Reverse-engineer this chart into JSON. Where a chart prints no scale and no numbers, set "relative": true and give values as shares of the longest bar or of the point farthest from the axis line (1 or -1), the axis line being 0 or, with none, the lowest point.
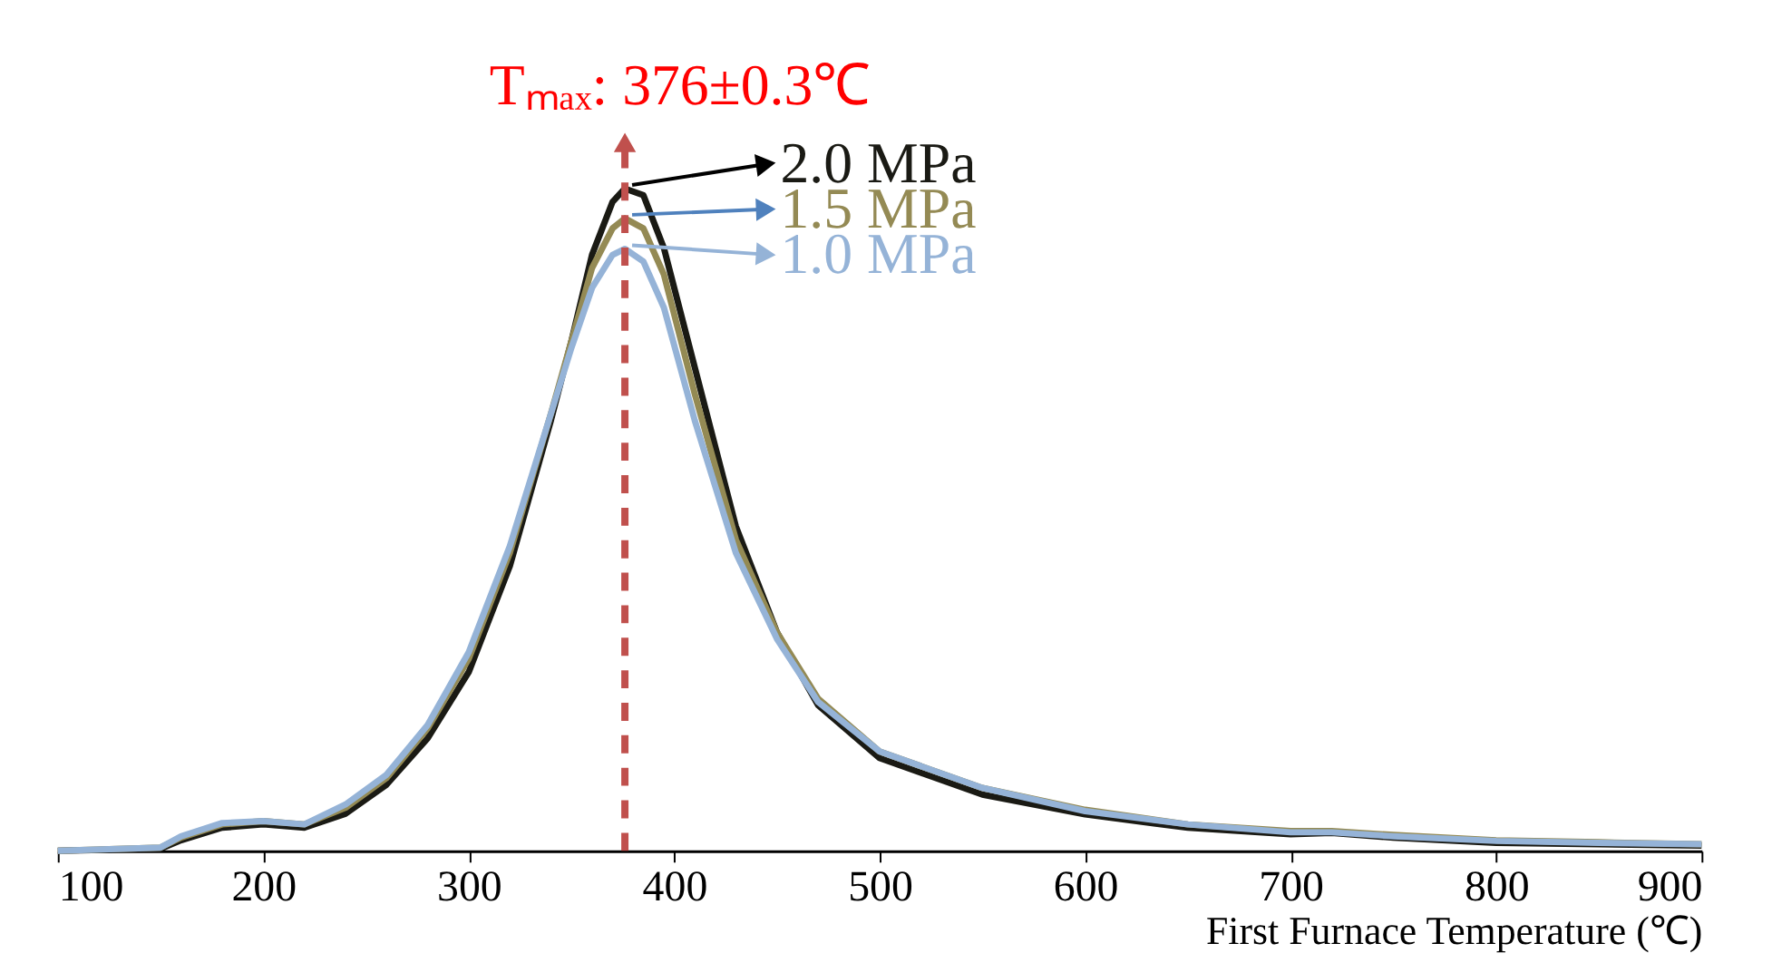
{
  "chart_data": {
    "type": "line",
    "relative": true,
    "xlabel": "First Furnace Temperature (℃)",
    "x": [
      100,
      150,
      160,
      180,
      200,
      220,
      240,
      260,
      280,
      300,
      320,
      340,
      350,
      360,
      370,
      376,
      385,
      395,
      410,
      430,
      450,
      470,
      500,
      550,
      600,
      650,
      700,
      720,
      750,
      800,
      850,
      900
    ],
    "xlim": [
      100,
      900
    ],
    "xticks": [
      100,
      200,
      300,
      400,
      500,
      600,
      700,
      800,
      900
    ],
    "series": [
      {
        "name": "2.0 MPa",
        "color": "#1a1a14",
        "values": [
          0,
          0.003,
          0.016,
          0.035,
          0.04,
          0.035,
          0.056,
          0.1,
          0.17,
          0.27,
          0.43,
          0.65,
          0.77,
          0.9,
          0.98,
          1.0,
          0.99,
          0.91,
          0.73,
          0.49,
          0.33,
          0.22,
          0.14,
          0.085,
          0.055,
          0.035,
          0.025,
          0.027,
          0.02,
          0.012,
          0.01,
          0.008
        ]
      },
      {
        "name": "1.5 MPa",
        "color": "#948a54",
        "values": [
          0,
          0.005,
          0.02,
          0.04,
          0.045,
          0.04,
          0.065,
          0.11,
          0.185,
          0.29,
          0.45,
          0.66,
          0.77,
          0.88,
          0.94,
          0.955,
          0.94,
          0.87,
          0.69,
          0.47,
          0.33,
          0.23,
          0.15,
          0.095,
          0.062,
          0.04,
          0.03,
          0.03,
          0.024,
          0.016,
          0.013,
          0.01
        ]
      },
      {
        "name": "1.0 MPa",
        "color": "#95b3d7",
        "values": [
          0,
          0.005,
          0.022,
          0.042,
          0.045,
          0.04,
          0.07,
          0.115,
          0.19,
          0.3,
          0.46,
          0.66,
          0.76,
          0.85,
          0.9,
          0.909,
          0.89,
          0.82,
          0.65,
          0.45,
          0.32,
          0.225,
          0.15,
          0.095,
          0.06,
          0.04,
          0.028,
          0.028,
          0.022,
          0.015,
          0.012,
          0.01
        ]
      }
    ],
    "ref_lines": [
      {
        "axis": "x",
        "value": 376,
        "label": "Tₘₐₓ: 376±0.3℃",
        "color": "#c0504d",
        "line_style": "dashed"
      }
    ],
    "legend": "top",
    "grid": false,
    "marker": "none",
    "line_style": "solid"
  }
}
